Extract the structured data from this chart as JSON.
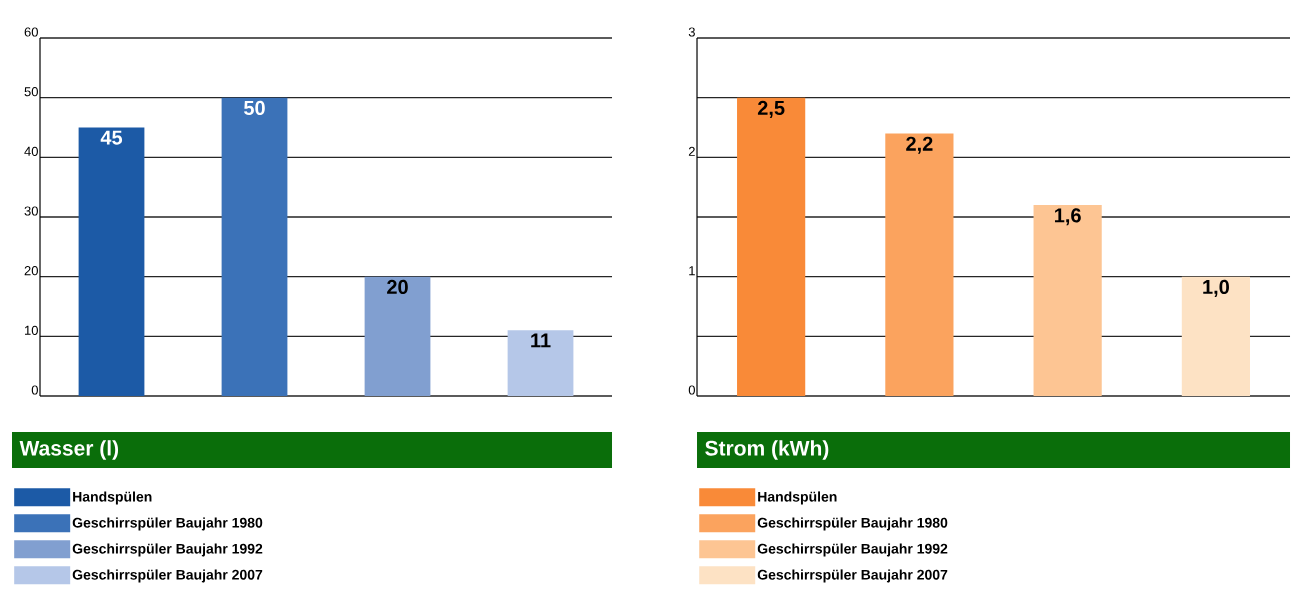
{
  "chart_data": [
    {
      "type": "bar",
      "title": "Wasser (l)",
      "categories": [
        null
      ],
      "series": [
        {
          "name": "Handspülen",
          "color": "#1c5aa6",
          "values": [
            45
          ],
          "value_labels": [
            "45"
          ]
        },
        {
          "name": "Geschirrspüler Baujahr 1980",
          "color": "#3b72b8",
          "values": [
            50
          ],
          "value_labels": [
            "50"
          ]
        },
        {
          "name": "Geschirrspüler Baujahr 1992",
          "color": "#819fd0",
          "values": [
            20
          ],
          "value_labels": [
            "20"
          ]
        },
        {
          "name": "Geschirrspüler Baujahr 2007",
          "color": "#b5c7e8",
          "values": [
            11
          ],
          "value_labels": [
            "11"
          ]
        }
      ],
      "ylim": [
        0,
        60
      ],
      "yticks": [
        0,
        10,
        20,
        30,
        40,
        50,
        60
      ],
      "grid": "y",
      "legend": "bottom"
    },
    {
      "type": "bar",
      "title": "Strom (kWh)",
      "categories": [
        null
      ],
      "series": [
        {
          "name": "Handspülen",
          "color": "#f98a38",
          "values": [
            2.5
          ],
          "value_labels": [
            "2,5"
          ]
        },
        {
          "name": "Geschirrspüler Baujahr 1980",
          "color": "#fba35e",
          "values": [
            2.2
          ],
          "value_labels": [
            "2,2"
          ]
        },
        {
          "name": "Geschirrspüler Baujahr 1992",
          "color": "#fdc593",
          "values": [
            1.6
          ],
          "value_labels": [
            "1,6"
          ]
        },
        {
          "name": "Geschirrspüler Baujahr 2007",
          "color": "#fde2c4",
          "values": [
            1.0
          ],
          "value_labels": [
            "1,0"
          ]
        }
      ],
      "ylim": [
        0,
        3
      ],
      "yticks": [
        0,
        {
          "value": 0.5,
          "label": null
        },
        1,
        {
          "value": 1.5,
          "label": null
        },
        2,
        {
          "value": 2.5,
          "label": null
        },
        3
      ],
      "grid": "y",
      "legend": "bottom"
    }
  ]
}
